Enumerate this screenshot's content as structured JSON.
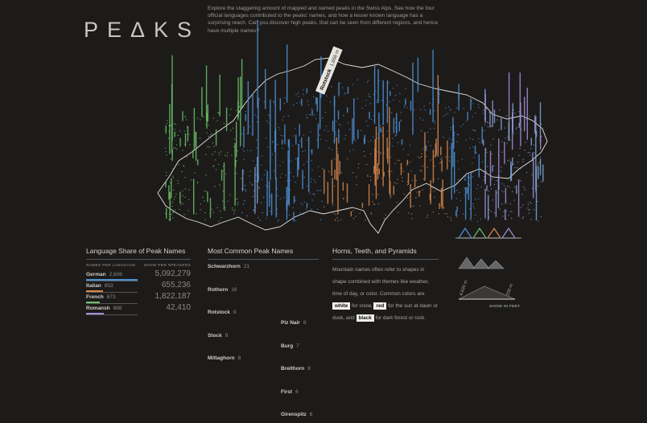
{
  "header": {
    "title": "PEΔKS",
    "intro": "Explore the staggering amount of mapped and named peaks in the Swiss Alps. See how the four official languages contributed to the peaks' names, and how a lesser known language has a surprising reach. Can you discover high peaks, that can be seen from different regions, and hence have multiple names?"
  },
  "map": {
    "highlight": {
      "name": "Rotstock",
      "height": "1,658 m"
    },
    "scale": {
      "max": "4,634 m",
      "min": "200 m",
      "toggle": "SHOW IN FEET"
    }
  },
  "language_share": {
    "title": "Language Share of Peak Names",
    "column_names": "NAMES PER LANGUAGE",
    "column_speakers": "SHOW PER SPEAKERS",
    "rows": [
      {
        "language": "German",
        "names": {
          "value": 2606,
          "label": "2,606"
        },
        "speakers": {
          "value": 5092279,
          "label": "5,092,279"
        },
        "color": "#4f93d8"
      },
      {
        "language": "Italian",
        "names": {
          "value": 853,
          "label": "853"
        },
        "speakers": {
          "value": 655236,
          "label": "655,236"
        },
        "color": "#d9884c"
      },
      {
        "language": "French",
        "names": {
          "value": 673,
          "label": "673"
        },
        "speakers": {
          "value": 1822187,
          "label": "1,822,187"
        },
        "color": "#6cbf68"
      },
      {
        "language": "Romansh",
        "names": {
          "value": 888,
          "label": "888"
        },
        "speakers": {
          "value": 42410,
          "label": "42,410"
        },
        "color": "#a58fd8"
      }
    ]
  },
  "common_names": {
    "title": "Most Common Peak Names",
    "items": [
      {
        "name": "Schwarzhorn",
        "count": 21
      },
      {
        "name": "Rothorn",
        "count": 16
      },
      {
        "name": "Rotstock",
        "count": 9
      },
      {
        "name": "Stock",
        "count": 9
      },
      {
        "name": "Mittaghorn",
        "count": 8
      },
      {
        "name": "Piz Nair",
        "count": 8
      },
      {
        "name": "Burg",
        "count": 7
      },
      {
        "name": "Breithorn",
        "count": 8
      },
      {
        "name": "First",
        "count": 6
      },
      {
        "name": "Girenspitz",
        "count": 6
      }
    ]
  },
  "shapes": {
    "title": "Horns, Teeth, and Pyramids",
    "text": [
      {
        "text": "Mountain names often refer to shapes in shape combined with themes like weather, time of day, or color. Common colors are"
      },
      {
        "text": "white",
        "chip": true
      },
      {
        "text": "for snow,"
      },
      {
        "text": "red",
        "chip": true
      },
      {
        "text": "for the sun at dawn or dusk, and"
      },
      {
        "text": "black",
        "chip": true
      },
      {
        "text": "for dark forest or rock."
      }
    ]
  }
}
